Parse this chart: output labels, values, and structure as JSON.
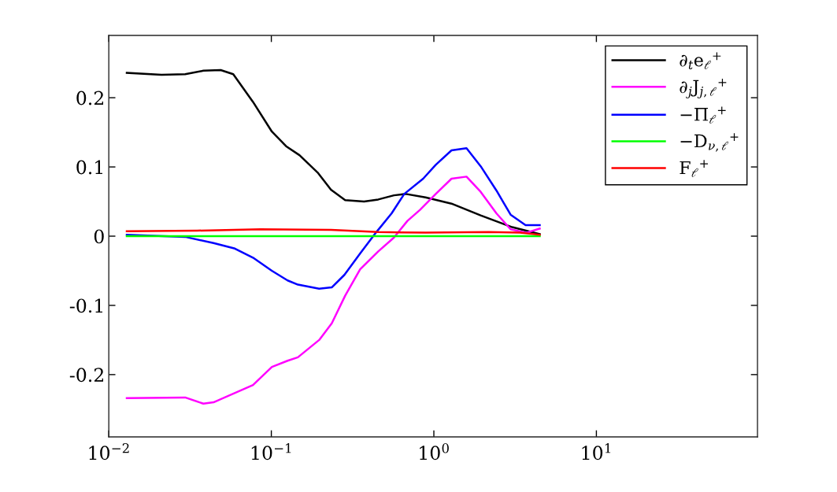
{
  "chart_data": {
    "type": "line",
    "log": "x",
    "grid": false,
    "legend": "top right",
    "line_style": "solid",
    "marker": "none",
    "xlim": [
      0.01,
      98
    ],
    "xticks": [
      {
        "value": 0.01,
        "label": "10$^{−2}$"
      },
      {
        "value": 0.1,
        "label": "10$^{−1}$"
      },
      {
        "value": 1,
        "label": "10$^{0}$"
      },
      {
        "value": 10,
        "label": "10$^{1}$"
      }
    ],
    "ylim": [
      -0.29,
      0.29
    ],
    "yticks": [
      {
        "value": -0.2,
        "label": "-0.2"
      },
      {
        "value": -0.1,
        "label": "-0.1"
      },
      0,
      0.1,
      0.2
    ],
    "series": [
      {
        "name": "∂$_{t}$e$_{ℓ}$$^{+}$",
        "color": "#000000",
        "x": [
          0.0129,
          0.0211,
          0.0295,
          0.0382,
          0.0488,
          0.0583,
          0.0771,
          0.1008,
          0.1232,
          0.149,
          0.1925,
          0.2328,
          0.2846,
          0.372,
          0.4548,
          0.5685,
          0.6722,
          0.8884,
          1.284,
          1.941,
          3.033,
          4.482
        ],
        "values": [
          0.236,
          0.233,
          0.234,
          0.239,
          0.24,
          0.234,
          0.194,
          0.151,
          0.13,
          0.117,
          0.092,
          0.067,
          0.052,
          0.05,
          0.053,
          0.059,
          0.061,
          0.056,
          0.047,
          0.03,
          0.013,
          0.003
        ]
      },
      {
        "name": "∂$_{j}$J$_{j,ℓ}$$^{+}$",
        "color": "#ff00ff",
        "x": [
          0.0129,
          0.0295,
          0.0382,
          0.0441,
          0.0771,
          0.1008,
          0.1259,
          0.1457,
          0.1969,
          0.2354,
          0.2846,
          0.3518,
          0.4548,
          0.5685,
          0.6874,
          0.8215,
          1.027,
          1.284,
          1.588,
          1.941,
          2.426,
          2.966,
          3.708,
          4.482
        ],
        "values": [
          -0.234,
          -0.233,
          -0.242,
          -0.24,
          -0.215,
          -0.189,
          -0.18,
          -0.175,
          -0.15,
          -0.126,
          -0.086,
          -0.048,
          -0.022,
          -0.002,
          0.022,
          0.038,
          0.061,
          0.083,
          0.086,
          0.064,
          0.033,
          0.01,
          0.005,
          0.011
        ]
      },
      {
        "name": "−Π$_{ℓ}$$^{+}$",
        "color": "#0000ff",
        "x": [
          0.0129,
          0.0295,
          0.0441,
          0.0597,
          0.0771,
          0.1008,
          0.1259,
          0.1457,
          0.1969,
          0.2354,
          0.2814,
          0.3518,
          0.4398,
          0.5498,
          0.6574,
          0.8592,
          1.027,
          1.284,
          1.588,
          1.941,
          2.426,
          2.966,
          3.666,
          4.482
        ],
        "values": [
          0.002,
          -0.001,
          -0.01,
          -0.018,
          -0.031,
          -0.05,
          -0.064,
          -0.07,
          -0.076,
          -0.074,
          -0.056,
          -0.025,
          0.005,
          0.033,
          0.061,
          0.083,
          0.103,
          0.124,
          0.127,
          0.101,
          0.066,
          0.031,
          0.016,
          0.016
        ]
      },
      {
        "name": "−D$_{ν,ℓ}$$^{+}$",
        "color": "#00ff00",
        "x": [
          0.0129,
          0.1008,
          1.027,
          4.482
        ],
        "values": [
          0,
          0,
          0,
          0
        ]
      },
      {
        "name": "F$_{ℓ}$$^{+}$",
        "color": "#ff0000",
        "x": [
          0.0129,
          0.0349,
          0.0853,
          0.2328,
          0.4548,
          0.8884,
          2.169,
          3.391,
          4.482
        ],
        "values": [
          0.007,
          0.008,
          0.01,
          0.009,
          0.006,
          0.005,
          0.006,
          0.005,
          0.002
        ]
      }
    ]
  }
}
